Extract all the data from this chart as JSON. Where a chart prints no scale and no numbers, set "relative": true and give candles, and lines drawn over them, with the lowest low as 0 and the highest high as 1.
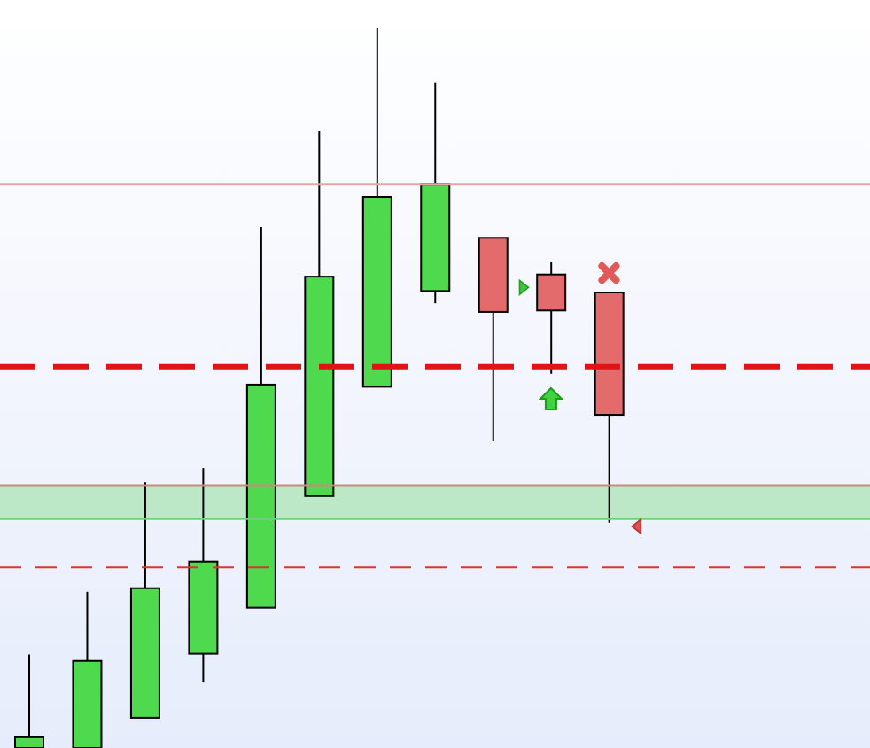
{
  "chart_data": {
    "type": "candlestick",
    "relative": true,
    "grid": false,
    "categories": [
      null,
      null,
      null,
      null,
      null,
      null,
      null,
      null,
      null,
      null,
      null,
      null,
      null,
      null,
      null
    ],
    "ohlc": [
      [
        0,
        0.13,
        0,
        0.015
      ],
      [
        0,
        0.217,
        0,
        0.121
      ],
      [
        0.042,
        0.369,
        0.042,
        0.222
      ],
      [
        0.131,
        0.389,
        0.091,
        0.259
      ],
      [
        0.195,
        0.724,
        0.195,
        0.505
      ],
      [
        0.35,
        0.857,
        0.35,
        0.655
      ],
      [
        0.502,
        1,
        0.502,
        0.766
      ],
      [
        0.635,
        0.924,
        0.618,
        0.783
      ],
      [
        0.709,
        0.709,
        0.426,
        0.606
      ],
      [
        0.658,
        0.675,
        0.52,
        0.608
      ],
      [
        0.633,
        0.633,
        0.313,
        0.463
      ],
      null,
      null,
      null,
      null
    ],
    "colors": [
      "#4fd94f",
      "#4fd94f",
      "#4fd94f",
      "#4fd94f",
      "#4fd94f",
      "#4fd94f",
      "#4fd94f",
      "#4fd94f",
      "#e36b6b",
      "#e36b6b",
      "#e36b6b",
      null,
      null,
      null,
      null
    ],
    "ref_lines": [
      {
        "axis": "y",
        "value": 0.783,
        "color": "#e8a3a3",
        "line_style": "solid"
      },
      {
        "axis": "y",
        "value": 0.53,
        "color": "#e01414",
        "line_style": "dashed"
      },
      {
        "axis": "y",
        "value": 0.251,
        "color": "#d83434",
        "line_style": "dashed"
      },
      {
        "axis": "y",
        "value": 0.365,
        "color": "#c98a7a",
        "line_style": "solid"
      },
      {
        "axis": "y",
        "value": 0.318,
        "color": "#6fcf7f",
        "line_style": "solid"
      }
    ],
    "bands": [
      {
        "axis": "y",
        "from": 0.318,
        "to": 0.365,
        "color": "#bce8c8"
      }
    ]
  }
}
